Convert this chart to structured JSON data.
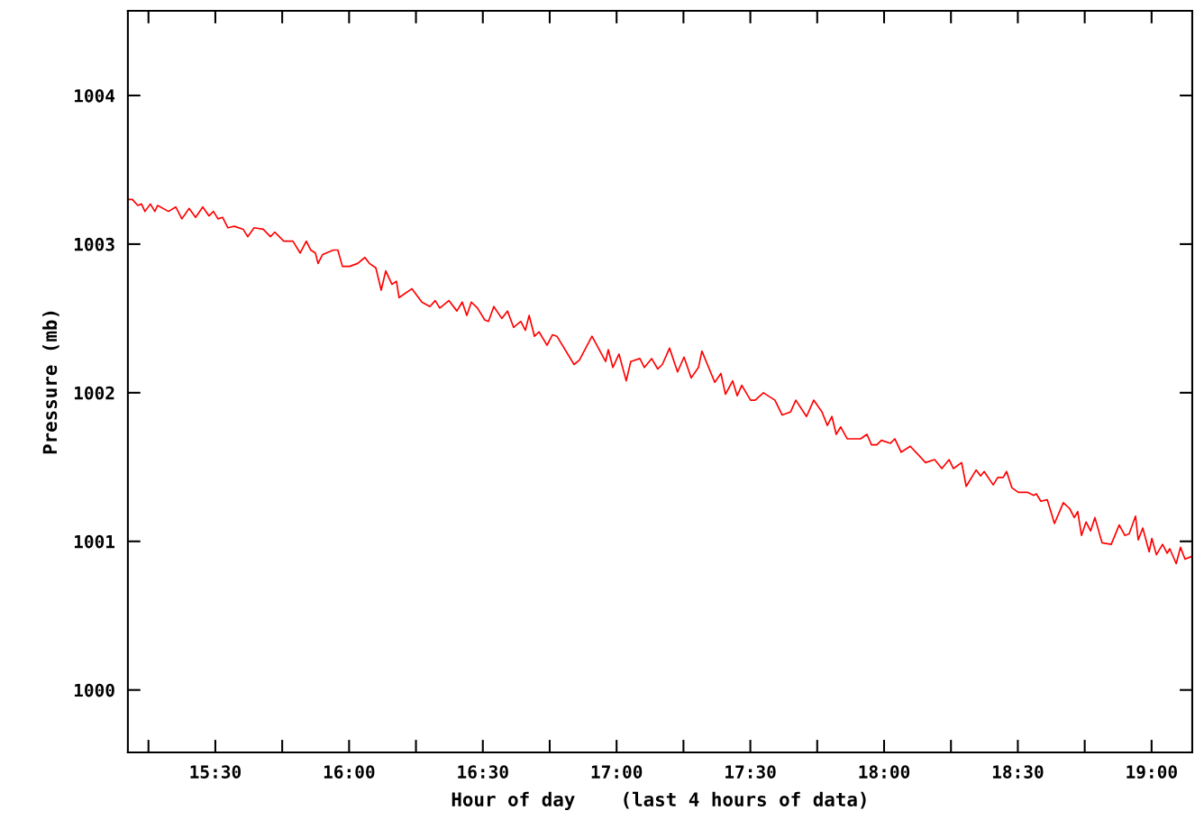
{
  "chart_data": {
    "type": "line",
    "xlabel": "Hour of day    (last 4 hours of data)",
    "ylabel": "Pressure (mb)",
    "xlim": [
      15.173,
      19.152
    ],
    "ylim": [
      999.58,
      1004.57
    ],
    "xticks": [
      {
        "value": 15.25,
        "label": null
      },
      {
        "value": 15.5,
        "label": "15:30"
      },
      {
        "value": 15.75,
        "label": null
      },
      {
        "value": 16.0,
        "label": "16:00"
      },
      {
        "value": 16.25,
        "label": null
      },
      {
        "value": 16.5,
        "label": "16:30"
      },
      {
        "value": 16.75,
        "label": null
      },
      {
        "value": 17.0,
        "label": "17:00"
      },
      {
        "value": 17.25,
        "label": null
      },
      {
        "value": 17.5,
        "label": "17:30"
      },
      {
        "value": 17.75,
        "label": null
      },
      {
        "value": 18.0,
        "label": "18:00"
      },
      {
        "value": 18.25,
        "label": null
      },
      {
        "value": 18.5,
        "label": "18:30"
      },
      {
        "value": 18.75,
        "label": null
      },
      {
        "value": 19.0,
        "label": "19:00"
      }
    ],
    "yticks": [
      1000,
      1001,
      1002,
      1003,
      1004
    ],
    "grid": false,
    "legend": false,
    "marker": "none",
    "line_style": "solid",
    "series": [
      {
        "color": "#ff0000",
        "x": [
          15.173,
          15.19,
          15.21,
          15.224,
          15.237,
          15.257,
          15.274,
          15.284,
          15.325,
          15.352,
          15.375,
          15.402,
          15.426,
          15.453,
          15.476,
          15.493,
          15.51,
          15.527,
          15.547,
          15.571,
          15.604,
          15.621,
          15.645,
          15.679,
          15.706,
          15.722,
          15.756,
          15.79,
          15.817,
          15.84,
          15.857,
          15.874,
          15.884,
          15.901,
          15.941,
          15.958,
          15.975,
          16.002,
          16.032,
          16.059,
          16.076,
          16.1,
          16.12,
          16.137,
          16.16,
          16.177,
          16.187,
          16.235,
          16.272,
          16.302,
          16.322,
          16.339,
          16.373,
          16.403,
          16.423,
          16.44,
          16.457,
          16.48,
          16.507,
          16.521,
          16.541,
          16.571,
          16.592,
          16.615,
          16.642,
          16.659,
          16.673,
          16.693,
          16.71,
          16.74,
          16.76,
          16.777,
          16.841,
          16.861,
          16.908,
          16.959,
          16.969,
          16.986,
          17.009,
          17.036,
          17.053,
          17.087,
          17.104,
          17.131,
          17.154,
          17.171,
          17.198,
          17.228,
          17.252,
          17.279,
          17.306,
          17.319,
          17.367,
          17.39,
          17.407,
          17.434,
          17.451,
          17.468,
          17.501,
          17.518,
          17.549,
          17.592,
          17.619,
          17.65,
          17.67,
          17.71,
          17.737,
          17.768,
          17.788,
          17.805,
          17.821,
          17.838,
          17.862,
          17.912,
          17.936,
          17.953,
          17.973,
          17.99,
          18.024,
          18.04,
          18.064,
          18.098,
          18.155,
          18.189,
          18.216,
          18.243,
          18.259,
          18.29,
          18.307,
          18.344,
          18.361,
          18.374,
          18.408,
          18.425,
          18.445,
          18.458,
          18.478,
          18.502,
          18.536,
          18.559,
          18.569,
          18.586,
          18.61,
          18.637,
          18.67,
          18.694,
          18.711,
          18.724,
          18.738,
          18.755,
          18.772,
          18.788,
          18.815,
          18.849,
          18.879,
          18.9,
          18.916,
          18.94,
          18.95,
          18.967,
          18.991,
          19.001,
          19.018,
          19.041,
          19.058,
          19.068,
          19.092,
          19.108,
          19.125,
          19.152
        ],
        "values": [
          1003.3,
          1003.3,
          1003.26,
          1003.27,
          1003.22,
          1003.27,
          1003.22,
          1003.26,
          1003.22,
          1003.25,
          1003.17,
          1003.24,
          1003.18,
          1003.25,
          1003.19,
          1003.22,
          1003.17,
          1003.18,
          1003.11,
          1003.12,
          1003.1,
          1003.05,
          1003.11,
          1003.1,
          1003.05,
          1003.08,
          1003.02,
          1003.02,
          1002.94,
          1003.02,
          1002.96,
          1002.94,
          1002.87,
          1002.93,
          1002.96,
          1002.96,
          1002.85,
          1002.85,
          1002.87,
          1002.91,
          1002.87,
          1002.84,
          1002.69,
          1002.82,
          1002.73,
          1002.75,
          1002.64,
          1002.7,
          1002.61,
          1002.58,
          1002.62,
          1002.57,
          1002.62,
          1002.55,
          1002.61,
          1002.52,
          1002.61,
          1002.57,
          1002.49,
          1002.48,
          1002.58,
          1002.5,
          1002.55,
          1002.44,
          1002.48,
          1002.42,
          1002.52,
          1002.38,
          1002.41,
          1002.32,
          1002.39,
          1002.38,
          1002.19,
          1002.22,
          1002.38,
          1002.21,
          1002.29,
          1002.17,
          1002.26,
          1002.08,
          1002.21,
          1002.23,
          1002.17,
          1002.23,
          1002.16,
          1002.19,
          1002.3,
          1002.14,
          1002.24,
          1002.1,
          1002.17,
          1002.28,
          1002.07,
          1002.13,
          1001.99,
          1002.08,
          1001.98,
          1002.05,
          1001.95,
          1001.95,
          1002.0,
          1001.95,
          1001.85,
          1001.87,
          1001.95,
          1001.84,
          1001.95,
          1001.87,
          1001.78,
          1001.84,
          1001.72,
          1001.77,
          1001.69,
          1001.69,
          1001.72,
          1001.65,
          1001.65,
          1001.68,
          1001.66,
          1001.69,
          1001.6,
          1001.64,
          1001.53,
          1001.55,
          1001.49,
          1001.55,
          1001.49,
          1001.53,
          1001.37,
          1001.48,
          1001.44,
          1001.47,
          1001.38,
          1001.43,
          1001.43,
          1001.47,
          1001.36,
          1001.33,
          1001.33,
          1001.31,
          1001.32,
          1001.27,
          1001.28,
          1001.12,
          1001.26,
          1001.22,
          1001.16,
          1001.2,
          1001.04,
          1001.13,
          1001.07,
          1001.16,
          1000.99,
          1000.98,
          1001.11,
          1001.04,
          1001.05,
          1001.17,
          1001.01,
          1001.09,
          1000.93,
          1001.02,
          1000.91,
          1000.98,
          1000.92,
          1000.95,
          1000.85,
          1000.96,
          1000.88,
          1000.9
        ]
      }
    ]
  }
}
